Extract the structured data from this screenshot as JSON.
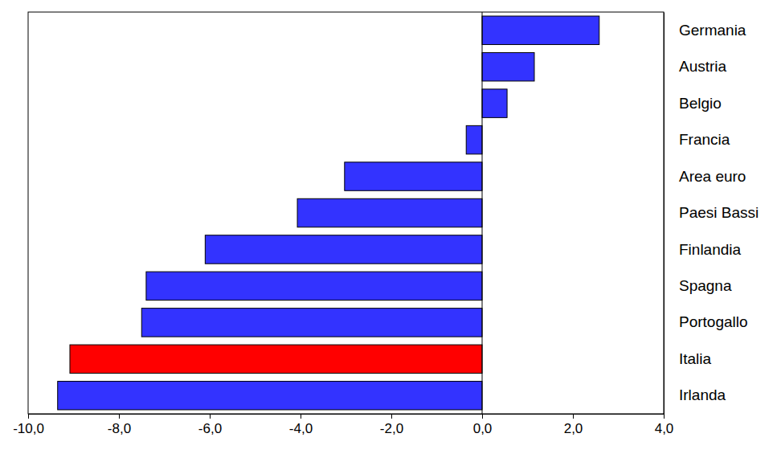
{
  "chart_data": {
    "type": "bar",
    "orientation": "horizontal",
    "categories": [
      "Germania",
      "Austria",
      "Belgio",
      "Francia",
      "Area euro",
      "Paesi Bassi",
      "Finlandia",
      "Spagna",
      "Portogallo",
      "Italia",
      "Irlanda"
    ],
    "values": [
      2.58,
      1.15,
      0.55,
      -0.35,
      -3.03,
      -4.07,
      -6.1,
      -7.4,
      -7.5,
      -9.08,
      -9.35
    ],
    "colors": [
      "#3333ff",
      "#3333ff",
      "#3333ff",
      "#3333ff",
      "#3333ff",
      "#3333ff",
      "#3333ff",
      "#3333ff",
      "#3333ff",
      "#ff0000",
      "#3333ff"
    ],
    "xlim": [
      -10,
      4
    ],
    "xticks": [
      {
        "value": -10,
        "label": "-10,0"
      },
      {
        "value": -8,
        "label": "-8,0"
      },
      {
        "value": -6,
        "label": "-6,0"
      },
      {
        "value": -4,
        "label": "-4,0"
      },
      {
        "value": -2,
        "label": "-2,0"
      },
      {
        "value": 0,
        "label": "0,0"
      },
      {
        "value": 2,
        "label": "2,0"
      },
      {
        "value": 4,
        "label": "4,0"
      }
    ],
    "grid": false
  }
}
